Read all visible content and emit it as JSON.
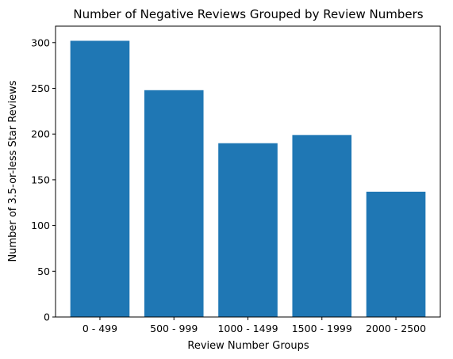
{
  "chart_data": {
    "type": "bar",
    "title": "Number of Negative Reviews Grouped by Review Numbers",
    "xlabel": "Review Number Groups",
    "ylabel": "Number of 3.5-or-less Star Reviews",
    "categories": [
      "0 - 499",
      "500 - 999",
      "1000 - 1499",
      "1500 - 1999",
      "2000 - 2500"
    ],
    "values": [
      302,
      248,
      190,
      199,
      137
    ],
    "ylim": [
      0,
      318
    ],
    "yticks": [
      0,
      50,
      100,
      150,
      200,
      250,
      300
    ],
    "bar_color": "#1f77b4",
    "grid": false,
    "legend": "none"
  }
}
